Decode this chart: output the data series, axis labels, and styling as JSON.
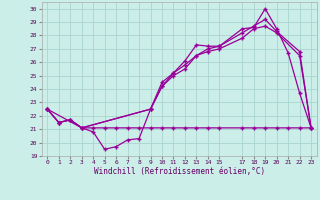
{
  "xlabel": "Windchill (Refroidissement éolien,°C)",
  "background_color": "#cceee8",
  "grid_color": "#aad4ce",
  "line_color": "#990099",
  "xlim": [
    -0.5,
    23.5
  ],
  "ylim": [
    19,
    30.5
  ],
  "yticks": [
    19,
    20,
    21,
    22,
    23,
    24,
    25,
    26,
    27,
    28,
    29,
    30
  ],
  "xtick_positions": [
    0,
    1,
    2,
    3,
    4,
    5,
    6,
    7,
    8,
    9,
    10,
    11,
    12,
    13,
    14,
    15,
    17,
    18,
    19,
    20,
    21,
    22,
    23
  ],
  "xtick_labels": [
    "0",
    "1",
    "2",
    "3",
    "4",
    "5",
    "6",
    "7",
    "8",
    "9",
    "10",
    "11",
    "12",
    "13",
    "14",
    "15",
    "17",
    "18",
    "19",
    "20",
    "21",
    "22",
    "23"
  ],
  "series1_x": [
    0,
    1,
    2,
    3,
    4,
    5,
    6,
    7,
    8,
    9,
    10,
    11,
    12,
    13,
    14,
    15,
    17,
    18,
    19,
    20,
    21,
    22,
    23
  ],
  "series1_y": [
    22.5,
    21.5,
    21.7,
    21.1,
    20.8,
    19.5,
    19.7,
    20.2,
    20.3,
    22.5,
    24.2,
    25.2,
    26.1,
    27.3,
    27.2,
    27.2,
    28.5,
    28.6,
    30.0,
    28.5,
    26.7,
    23.7,
    21.1
  ],
  "series2_x": [
    0,
    3,
    4,
    5,
    6,
    7,
    8,
    9,
    10,
    11,
    12,
    13,
    14,
    15,
    17,
    18,
    19,
    20,
    21,
    22,
    23
  ],
  "series2_y": [
    22.5,
    21.1,
    21.1,
    21.1,
    21.1,
    21.1,
    21.1,
    21.1,
    21.1,
    21.1,
    21.1,
    21.1,
    21.1,
    21.1,
    21.1,
    21.1,
    21.1,
    21.1,
    21.1,
    21.1,
    21.1
  ],
  "series3_x": [
    0,
    1,
    2,
    3,
    9,
    10,
    11,
    12,
    13,
    14,
    15,
    17,
    18,
    19,
    20,
    22,
    23
  ],
  "series3_y": [
    22.5,
    21.5,
    21.7,
    21.1,
    22.5,
    24.5,
    25.2,
    25.8,
    26.5,
    27.0,
    27.2,
    28.2,
    28.7,
    29.2,
    28.3,
    26.8,
    21.1
  ],
  "series4_x": [
    0,
    1,
    2,
    3,
    9,
    10,
    11,
    12,
    13,
    14,
    15,
    17,
    18,
    19,
    20,
    22,
    23
  ],
  "series4_y": [
    22.5,
    21.5,
    21.7,
    21.1,
    22.5,
    24.2,
    25.0,
    25.5,
    26.5,
    26.8,
    27.0,
    27.8,
    28.5,
    28.7,
    28.2,
    26.5,
    21.1
  ]
}
